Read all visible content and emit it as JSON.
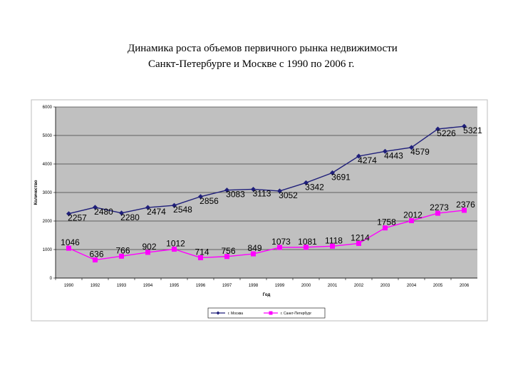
{
  "title_line1": "Динамика роста объемов первичного рынка недвижимости",
  "title_line2": "Санкт-Петербурге и Москве с 1990 по 2006 г.",
  "chart_data": {
    "type": "line",
    "xlabel": "Год",
    "ylabel": "Количество",
    "ylim": [
      0,
      6000
    ],
    "yticks": [
      "0",
      "1000",
      "2000",
      "3000",
      "4000",
      "5000",
      "6000"
    ],
    "categories": [
      "1990",
      "1992",
      "1993",
      "1994",
      "1995",
      "1996",
      "1997",
      "1998",
      "1999",
      "2000",
      "2001",
      "2002",
      "2003",
      "2004",
      "2005",
      "2006"
    ],
    "grid": true,
    "legend_position": "bottom",
    "series": [
      {
        "name": "г. Москва",
        "color": "#1f1f7a",
        "marker": "diamond",
        "values": [
          2257,
          2480,
          2280,
          2474,
          2548,
          2856,
          3083,
          3113,
          3052,
          3342,
          3691,
          4274,
          4443,
          4579,
          5226,
          5321
        ],
        "labels": [
          "2257",
          "2480",
          "2280",
          "2474",
          "2548",
          "2856",
          "3083",
          "3113",
          "3052",
          "3342",
          "3691",
          "4274",
          "4443",
          "4579",
          "5226",
          "5321"
        ]
      },
      {
        "name": "г. Санкт-Петербург",
        "color": "#ff00ff",
        "marker": "square",
        "values": [
          1046,
          636,
          766,
          902,
          1012,
          714,
          756,
          849,
          1073,
          1081,
          1118,
          1214,
          1758,
          2012,
          2273,
          2376
        ],
        "labels": [
          "1046",
          "636",
          "766",
          "902",
          "1012",
          "714",
          "756",
          "849",
          "1073",
          "1081",
          "1118",
          "1214",
          "1758",
          "2012",
          "2273",
          "2376"
        ]
      }
    ]
  }
}
